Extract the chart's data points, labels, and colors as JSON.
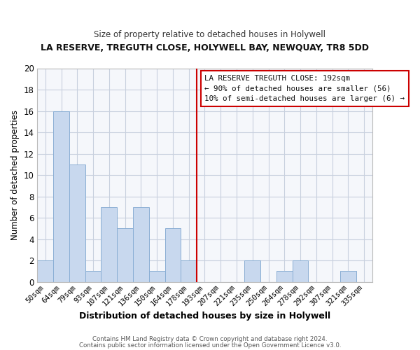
{
  "title": "LA RESERVE, TREGUTH CLOSE, HOLYWELL BAY, NEWQUAY, TR8 5DD",
  "subtitle": "Size of property relative to detached houses in Holywell",
  "xlabel": "Distribution of detached houses by size in Holywell",
  "ylabel": "Number of detached properties",
  "bin_labels": [
    "50sqm",
    "64sqm",
    "79sqm",
    "93sqm",
    "107sqm",
    "121sqm",
    "136sqm",
    "150sqm",
    "164sqm",
    "178sqm",
    "193sqm",
    "207sqm",
    "221sqm",
    "235sqm",
    "250sqm",
    "264sqm",
    "278sqm",
    "292sqm",
    "307sqm",
    "321sqm",
    "335sqm"
  ],
  "bar_values": [
    2,
    16,
    11,
    1,
    7,
    5,
    7,
    1,
    5,
    2,
    0,
    0,
    0,
    2,
    0,
    1,
    2,
    0,
    0,
    1,
    0
  ],
  "bar_color": "#c8d8ee",
  "bar_edge_color": "#8aaed4",
  "vline_x_index": 10,
  "vline_color": "#cc0000",
  "ylim": [
    0,
    20
  ],
  "yticks": [
    0,
    2,
    4,
    6,
    8,
    10,
    12,
    14,
    16,
    18,
    20
  ],
  "annotation_title": "LA RESERVE TREGUTH CLOSE: 192sqm",
  "annotation_line1": "← 90% of detached houses are smaller (56)",
  "annotation_line2": "10% of semi-detached houses are larger (6) →",
  "footer_line1": "Contains HM Land Registry data © Crown copyright and database right 2024.",
  "footer_line2": "Contains public sector information licensed under the Open Government Licence v3.0.",
  "bg_color": "#ffffff",
  "plot_bg_color": "#f5f7fb",
  "grid_color": "#c8d0de"
}
